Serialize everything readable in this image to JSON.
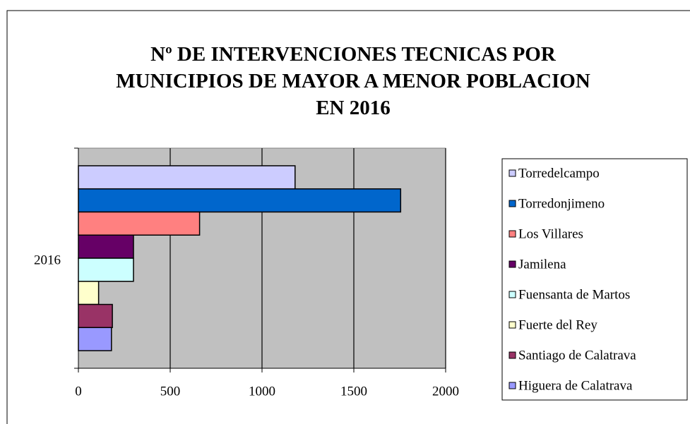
{
  "chart_data": {
    "type": "barh",
    "title": "Nº DE INTERVENCIONES TECNICAS POR MUNICIPIOS DE MAYOR A MENOR POBLACION EN 2016",
    "categories": [
      "2016"
    ],
    "series": [
      {
        "name": "Torredelcampo",
        "color": "#ccccff",
        "values": [
          1180
        ]
      },
      {
        "name": "Torredonjimeno",
        "color": "#0066cc",
        "values": [
          1755
        ]
      },
      {
        "name": "Los Villares",
        "color": "#ff8080",
        "values": [
          660
        ]
      },
      {
        "name": "Jamilena",
        "color": "#660066",
        "values": [
          300
        ]
      },
      {
        "name": "Fuensanta de Martos",
        "color": "#ccffff",
        "values": [
          300
        ]
      },
      {
        "name": "Fuerte del Rey",
        "color": "#ffffcc",
        "values": [
          110
        ]
      },
      {
        "name": "Santiago de Calatrava",
        "color": "#993366",
        "values": [
          185
        ]
      },
      {
        "name": "Higuera de Calatrava",
        "color": "#9999ff",
        "values": [
          180
        ]
      }
    ],
    "xlim": [
      0,
      2000
    ],
    "xticks": [
      0,
      500,
      1000,
      1500,
      2000
    ],
    "grid": true,
    "legend": "right"
  }
}
